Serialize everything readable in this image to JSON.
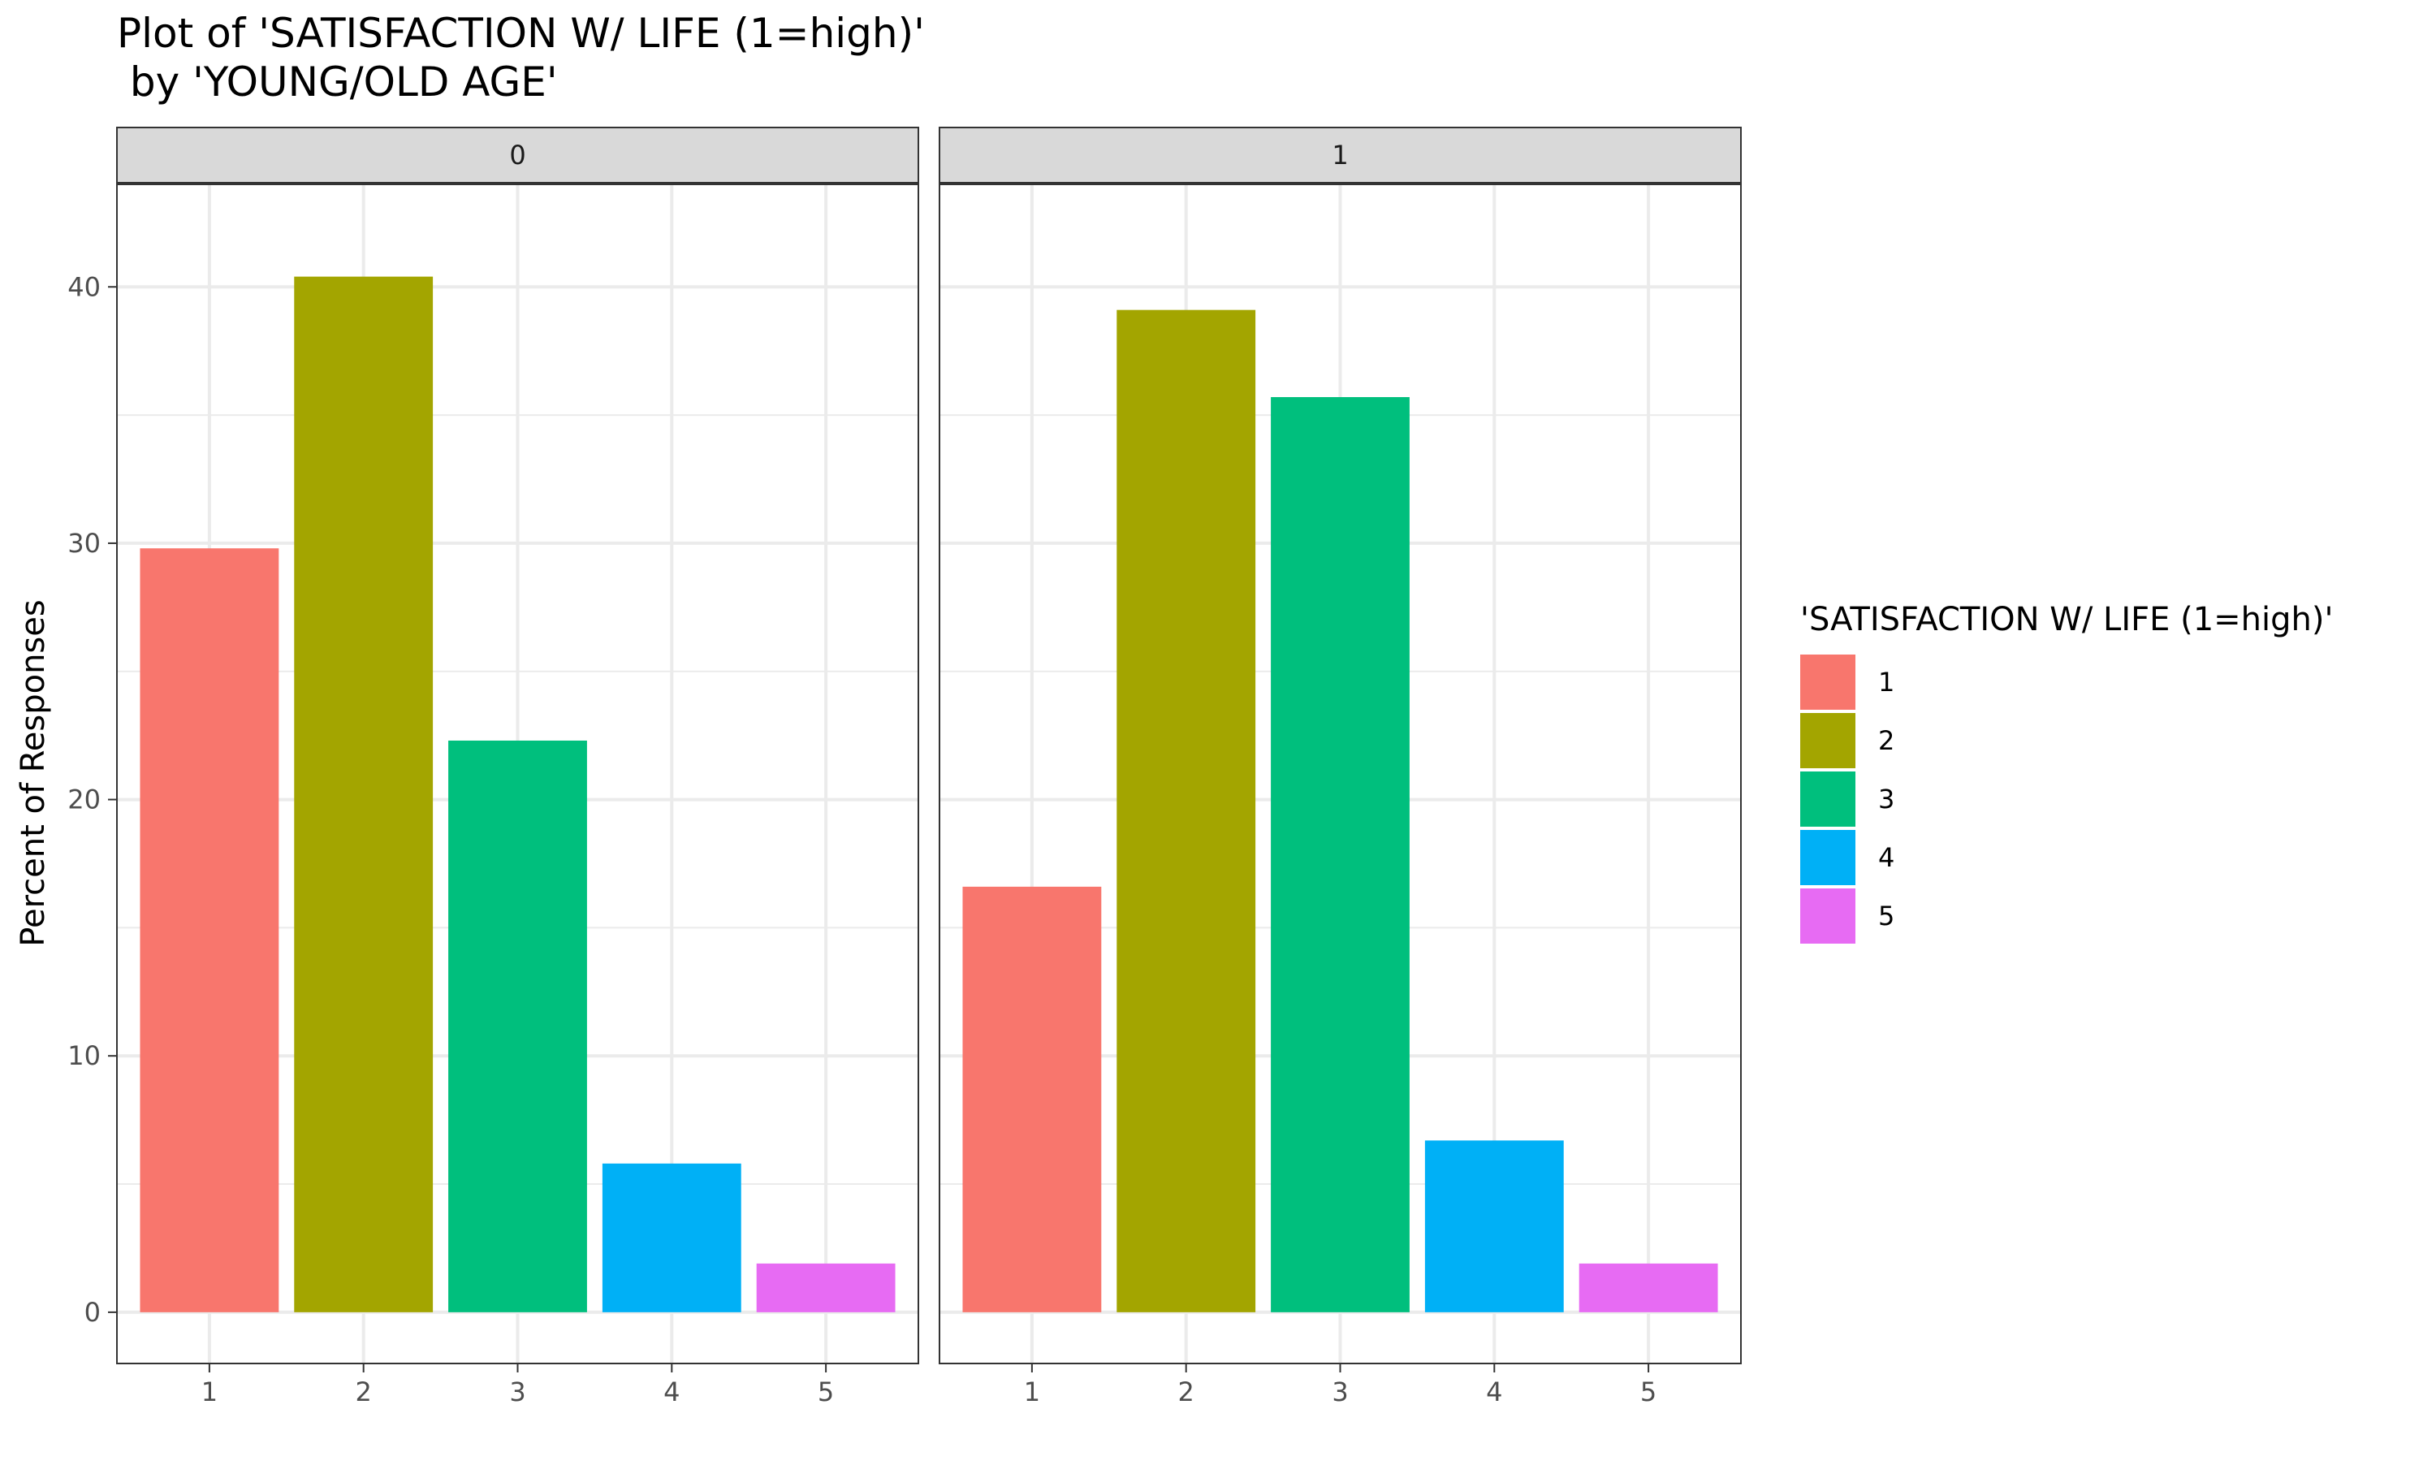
{
  "chart_data": {
    "type": "bar",
    "title": "Plot of 'SATISFACTION W/ LIFE (1=high)'",
    "subtitle": " by 'YOUNG/OLD AGE'",
    "xlabel": "",
    "ylabel": "Percent of Responses",
    "ylim": [
      -2,
      44
    ],
    "yticks": [
      0,
      10,
      20,
      30,
      40
    ],
    "grid": true,
    "legend": {
      "title": "'SATISFACTION W/ LIFE (1=high)'",
      "placement": "right",
      "entries": [
        "1",
        "2",
        "3",
        "4",
        "5"
      ]
    },
    "categories": [
      "1",
      "2",
      "3",
      "4",
      "5"
    ],
    "colors": [
      "#F8766D",
      "#A3A500",
      "#00BF7D",
      "#00B0F6",
      "#E76BF3"
    ],
    "facets": [
      {
        "label": "0",
        "values": [
          29.8,
          40.4,
          22.3,
          5.8,
          1.9
        ]
      },
      {
        "label": "1",
        "values": [
          16.6,
          39.1,
          35.7,
          6.7,
          1.9
        ]
      }
    ]
  }
}
